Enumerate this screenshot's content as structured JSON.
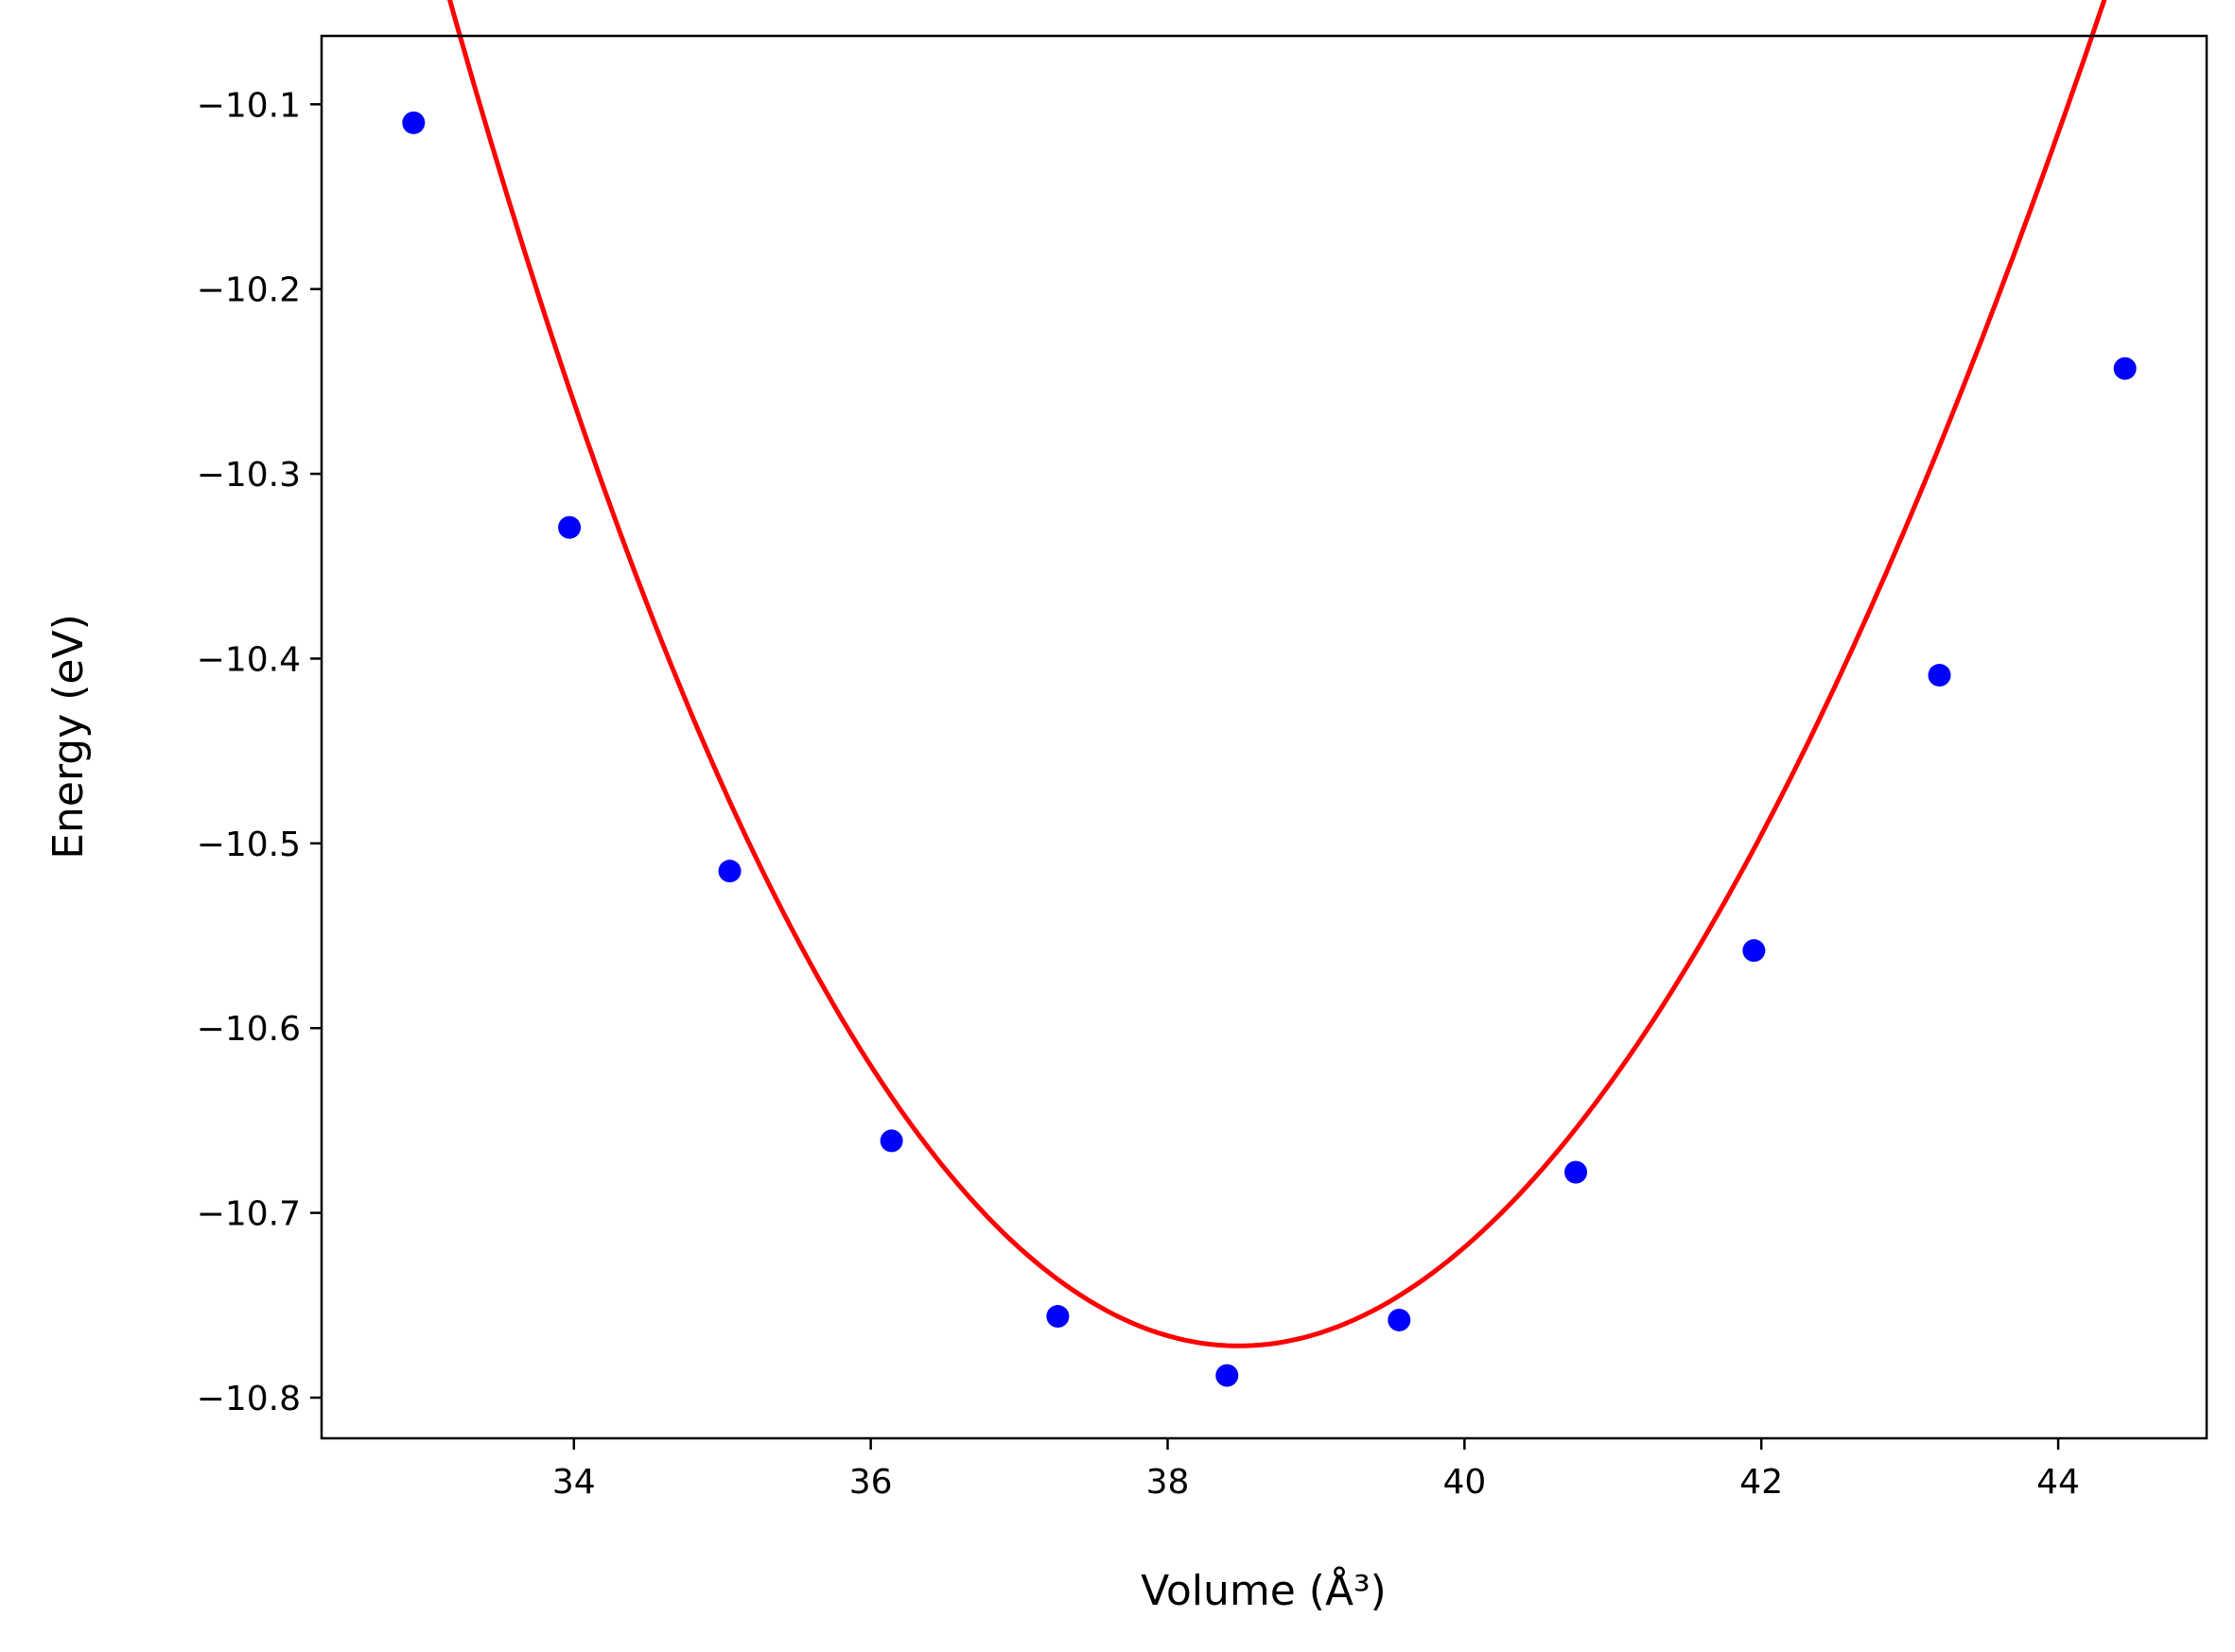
{
  "chart_data": {
    "type": "scatter",
    "xlabel": "Volume (Å³)",
    "ylabel": "Energy (eV)",
    "xlim": [
      32.3,
      45.0
    ],
    "ylim": [
      -10.822,
      -10.063
    ],
    "grid": false,
    "x_ticks": [
      34,
      36,
      38,
      40,
      42,
      44
    ],
    "y_ticks": [
      -10.8,
      -10.7,
      -10.6,
      -10.5,
      -10.4,
      -10.3,
      -10.2,
      -10.1
    ],
    "x_tick_labels": [
      "34",
      "36",
      "38",
      "40",
      "42",
      "44"
    ],
    "y_tick_labels": [
      "−10.8",
      "−10.7",
      "−10.6",
      "−10.5",
      "−10.4",
      "−10.3",
      "−10.2",
      "−10.1"
    ],
    "colors": {
      "points": "#0000ff",
      "fit": "#ff0000"
    },
    "series": [
      {
        "kind": "points",
        "x": [
          32.92,
          33.97,
          35.05,
          36.14,
          37.26,
          38.4,
          39.56,
          40.75,
          41.95,
          43.2,
          44.45
        ],
        "y": [
          -10.11,
          -10.329,
          -10.515,
          -10.661,
          -10.756,
          -10.788,
          -10.758,
          -10.678,
          -10.558,
          -10.409,
          -10.243
        ]
      },
      {
        "kind": "fit-line",
        "x_range": [
          32.92,
          44.45
        ],
        "v0": 38.48,
        "e0": -10.772,
        "a": 0.0237,
        "b": -0.00039
      }
    ]
  }
}
